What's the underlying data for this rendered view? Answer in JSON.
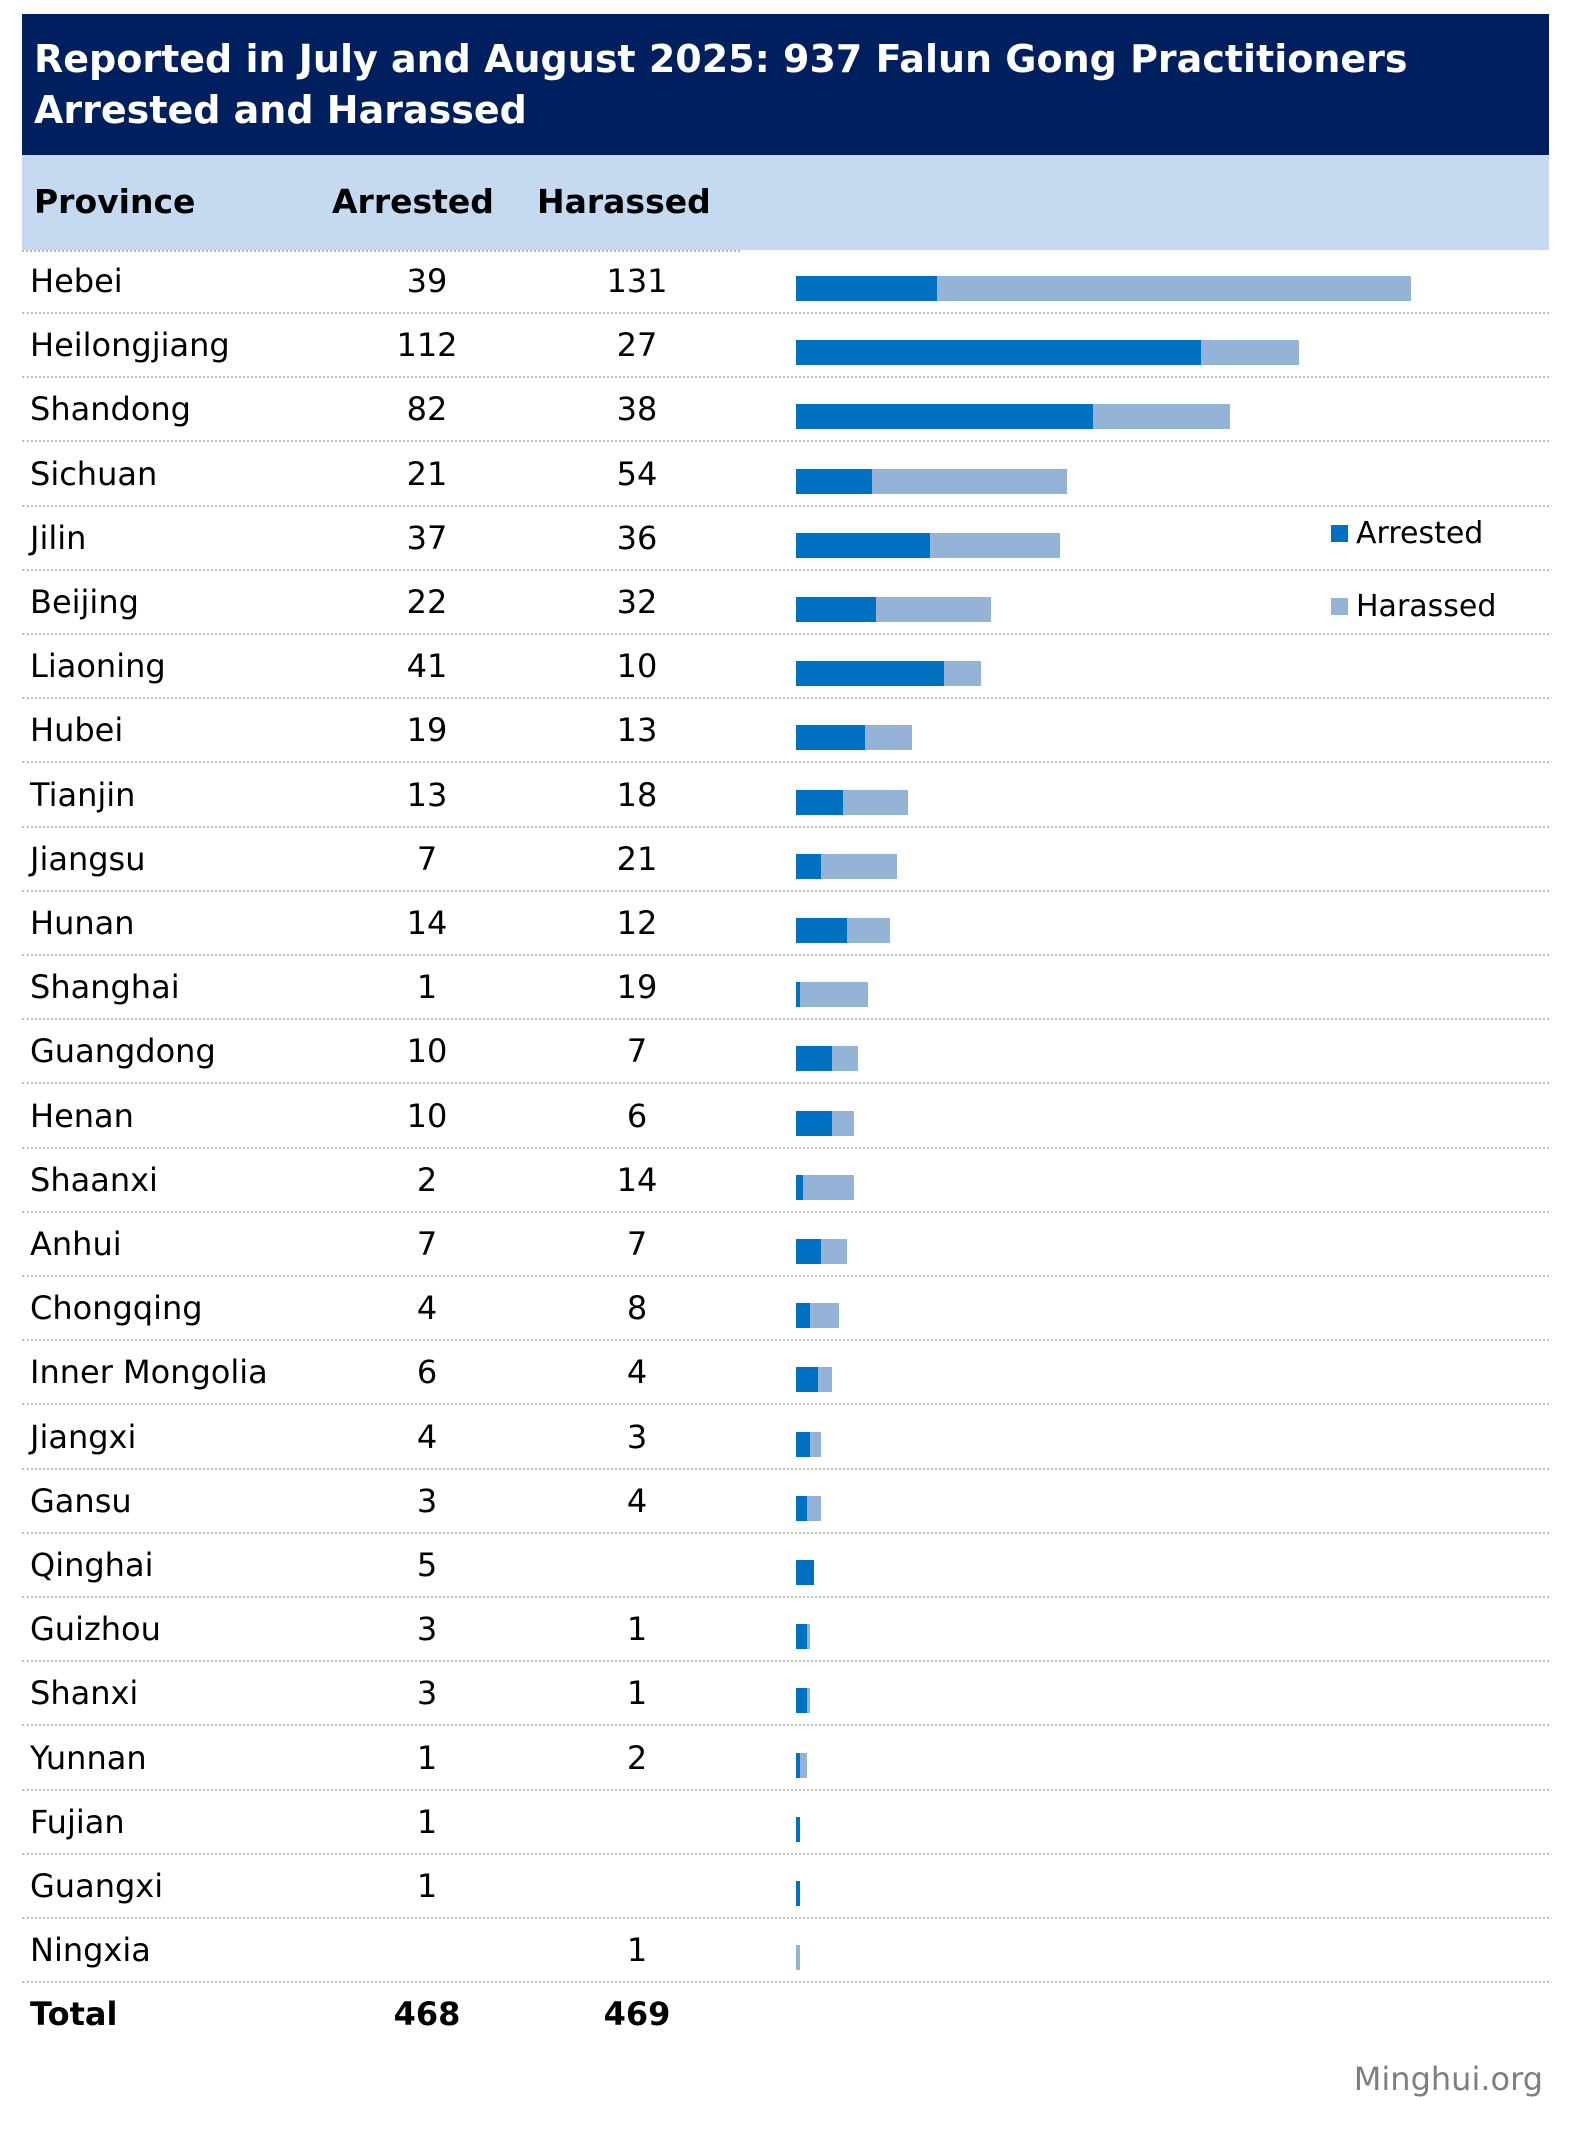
{
  "title": "Reported in July and August 2025: 937 Falun Gong Practitioners Arrested and Harassed",
  "colors": {
    "title_bg": "#001f5f",
    "header_bg": "#c5d9f1",
    "arrested": "#0070c0",
    "harassed": "#95b3d7"
  },
  "header": {
    "province": "Province",
    "arrested": "Arrested",
    "harassed": "Harassed"
  },
  "total": {
    "label": "Total",
    "arrested": "468",
    "harassed": "469"
  },
  "legend": {
    "arrested": "Arrested",
    "harassed": "Harassed"
  },
  "credit": "Minghui.org",
  "chart_data": {
    "type": "bar",
    "stacked": true,
    "orientation": "horizontal",
    "title": "Reported in July and August 2025: 937 Falun Gong Practitioners Arrested and Harassed",
    "legend_position": "right",
    "categories": [
      "Hebei",
      "Heilongjiang",
      "Shandong",
      "Sichuan",
      "Jilin",
      "Beijing",
      "Liaoning",
      "Hubei",
      "Tianjin",
      "Jiangsu",
      "Hunan",
      "Shanghai",
      "Guangdong",
      "Henan",
      "Shaanxi",
      "Anhui",
      "Chongqing",
      "Inner Mongolia",
      "Jiangxi",
      "Gansu",
      "Qinghai",
      "Guizhou",
      "Shanxi",
      "Yunnan",
      "Fujian",
      "Guangxi",
      "Ningxia"
    ],
    "series": [
      {
        "name": "Arrested",
        "values": [
          39,
          112,
          82,
          21,
          37,
          22,
          41,
          19,
          13,
          7,
          14,
          1,
          10,
          10,
          2,
          7,
          4,
          6,
          4,
          3,
          5,
          3,
          3,
          1,
          1,
          1,
          null
        ]
      },
      {
        "name": "Harassed",
        "values": [
          131,
          27,
          38,
          54,
          36,
          32,
          10,
          13,
          18,
          21,
          12,
          19,
          7,
          6,
          14,
          7,
          8,
          4,
          3,
          4,
          null,
          1,
          1,
          2,
          null,
          null,
          1
        ]
      }
    ]
  }
}
